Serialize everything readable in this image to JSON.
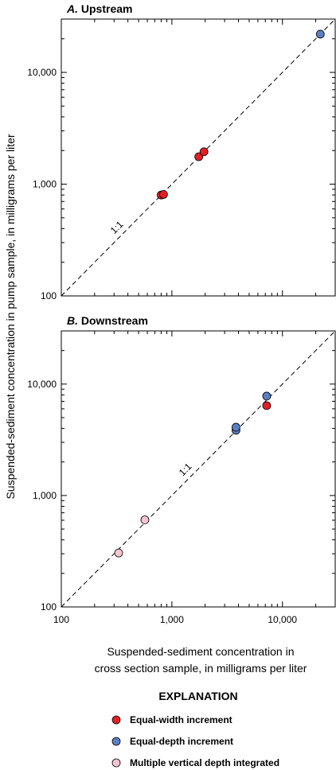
{
  "chart_data": {
    "type": "scatter",
    "scale": "log",
    "xlim": [
      100,
      30000
    ],
    "ylim": [
      100,
      30000
    ],
    "x_ticks": [
      100,
      1000,
      10000
    ],
    "y_ticks": [
      100,
      1000,
      10000
    ],
    "x_tick_labels": [
      "100",
      "1,000",
      "10,000"
    ],
    "y_tick_labels": [
      "100",
      "1,000",
      "10,000"
    ],
    "xlabel_lines": [
      "Suspended-sediment concentration in",
      "cross section sample, in milligrams per liter"
    ],
    "ylabel": "Suspended-sediment concentration in pump sample, in milligrams per liter",
    "reference_line": {
      "label": "1:1"
    },
    "legend": {
      "title": "EXPLANATION",
      "position": "bottom",
      "entries": [
        {
          "label": "Equal-width increment",
          "color": "#e41e26"
        },
        {
          "label": "Equal-depth increment",
          "color": "#5b7fc2"
        },
        {
          "label": "Multiple vertical depth integrated",
          "color": "#f6c4d0"
        }
      ]
    },
    "panels": [
      {
        "title_letter": "A.",
        "title_text": "Upstream",
        "series": [
          {
            "name": "Equal-width increment",
            "color": "#e41e26",
            "points": [
              [
                800,
                800
              ],
              [
                840,
                810
              ],
              [
                1750,
                1760
              ],
              [
                1950,
                1950
              ]
            ]
          },
          {
            "name": "Equal-depth increment",
            "color": "#5b7fc2",
            "points": [
              [
                22000,
                22000
              ]
            ]
          }
        ]
      },
      {
        "title_letter": "B.",
        "title_text": "Downstream",
        "series": [
          {
            "name": "Equal-width increment",
            "color": "#e41e26",
            "points": [
              [
                7200,
                6400
              ]
            ]
          },
          {
            "name": "Equal-depth increment",
            "color": "#5b7fc2",
            "points": [
              [
                3800,
                3850
              ],
              [
                3800,
                4100
              ],
              [
                7200,
                7800
              ]
            ]
          },
          {
            "name": "Multiple vertical depth integrated",
            "color": "#f6c4d0",
            "points": [
              [
                330,
                305
              ],
              [
                570,
                605
              ]
            ]
          }
        ]
      }
    ]
  }
}
